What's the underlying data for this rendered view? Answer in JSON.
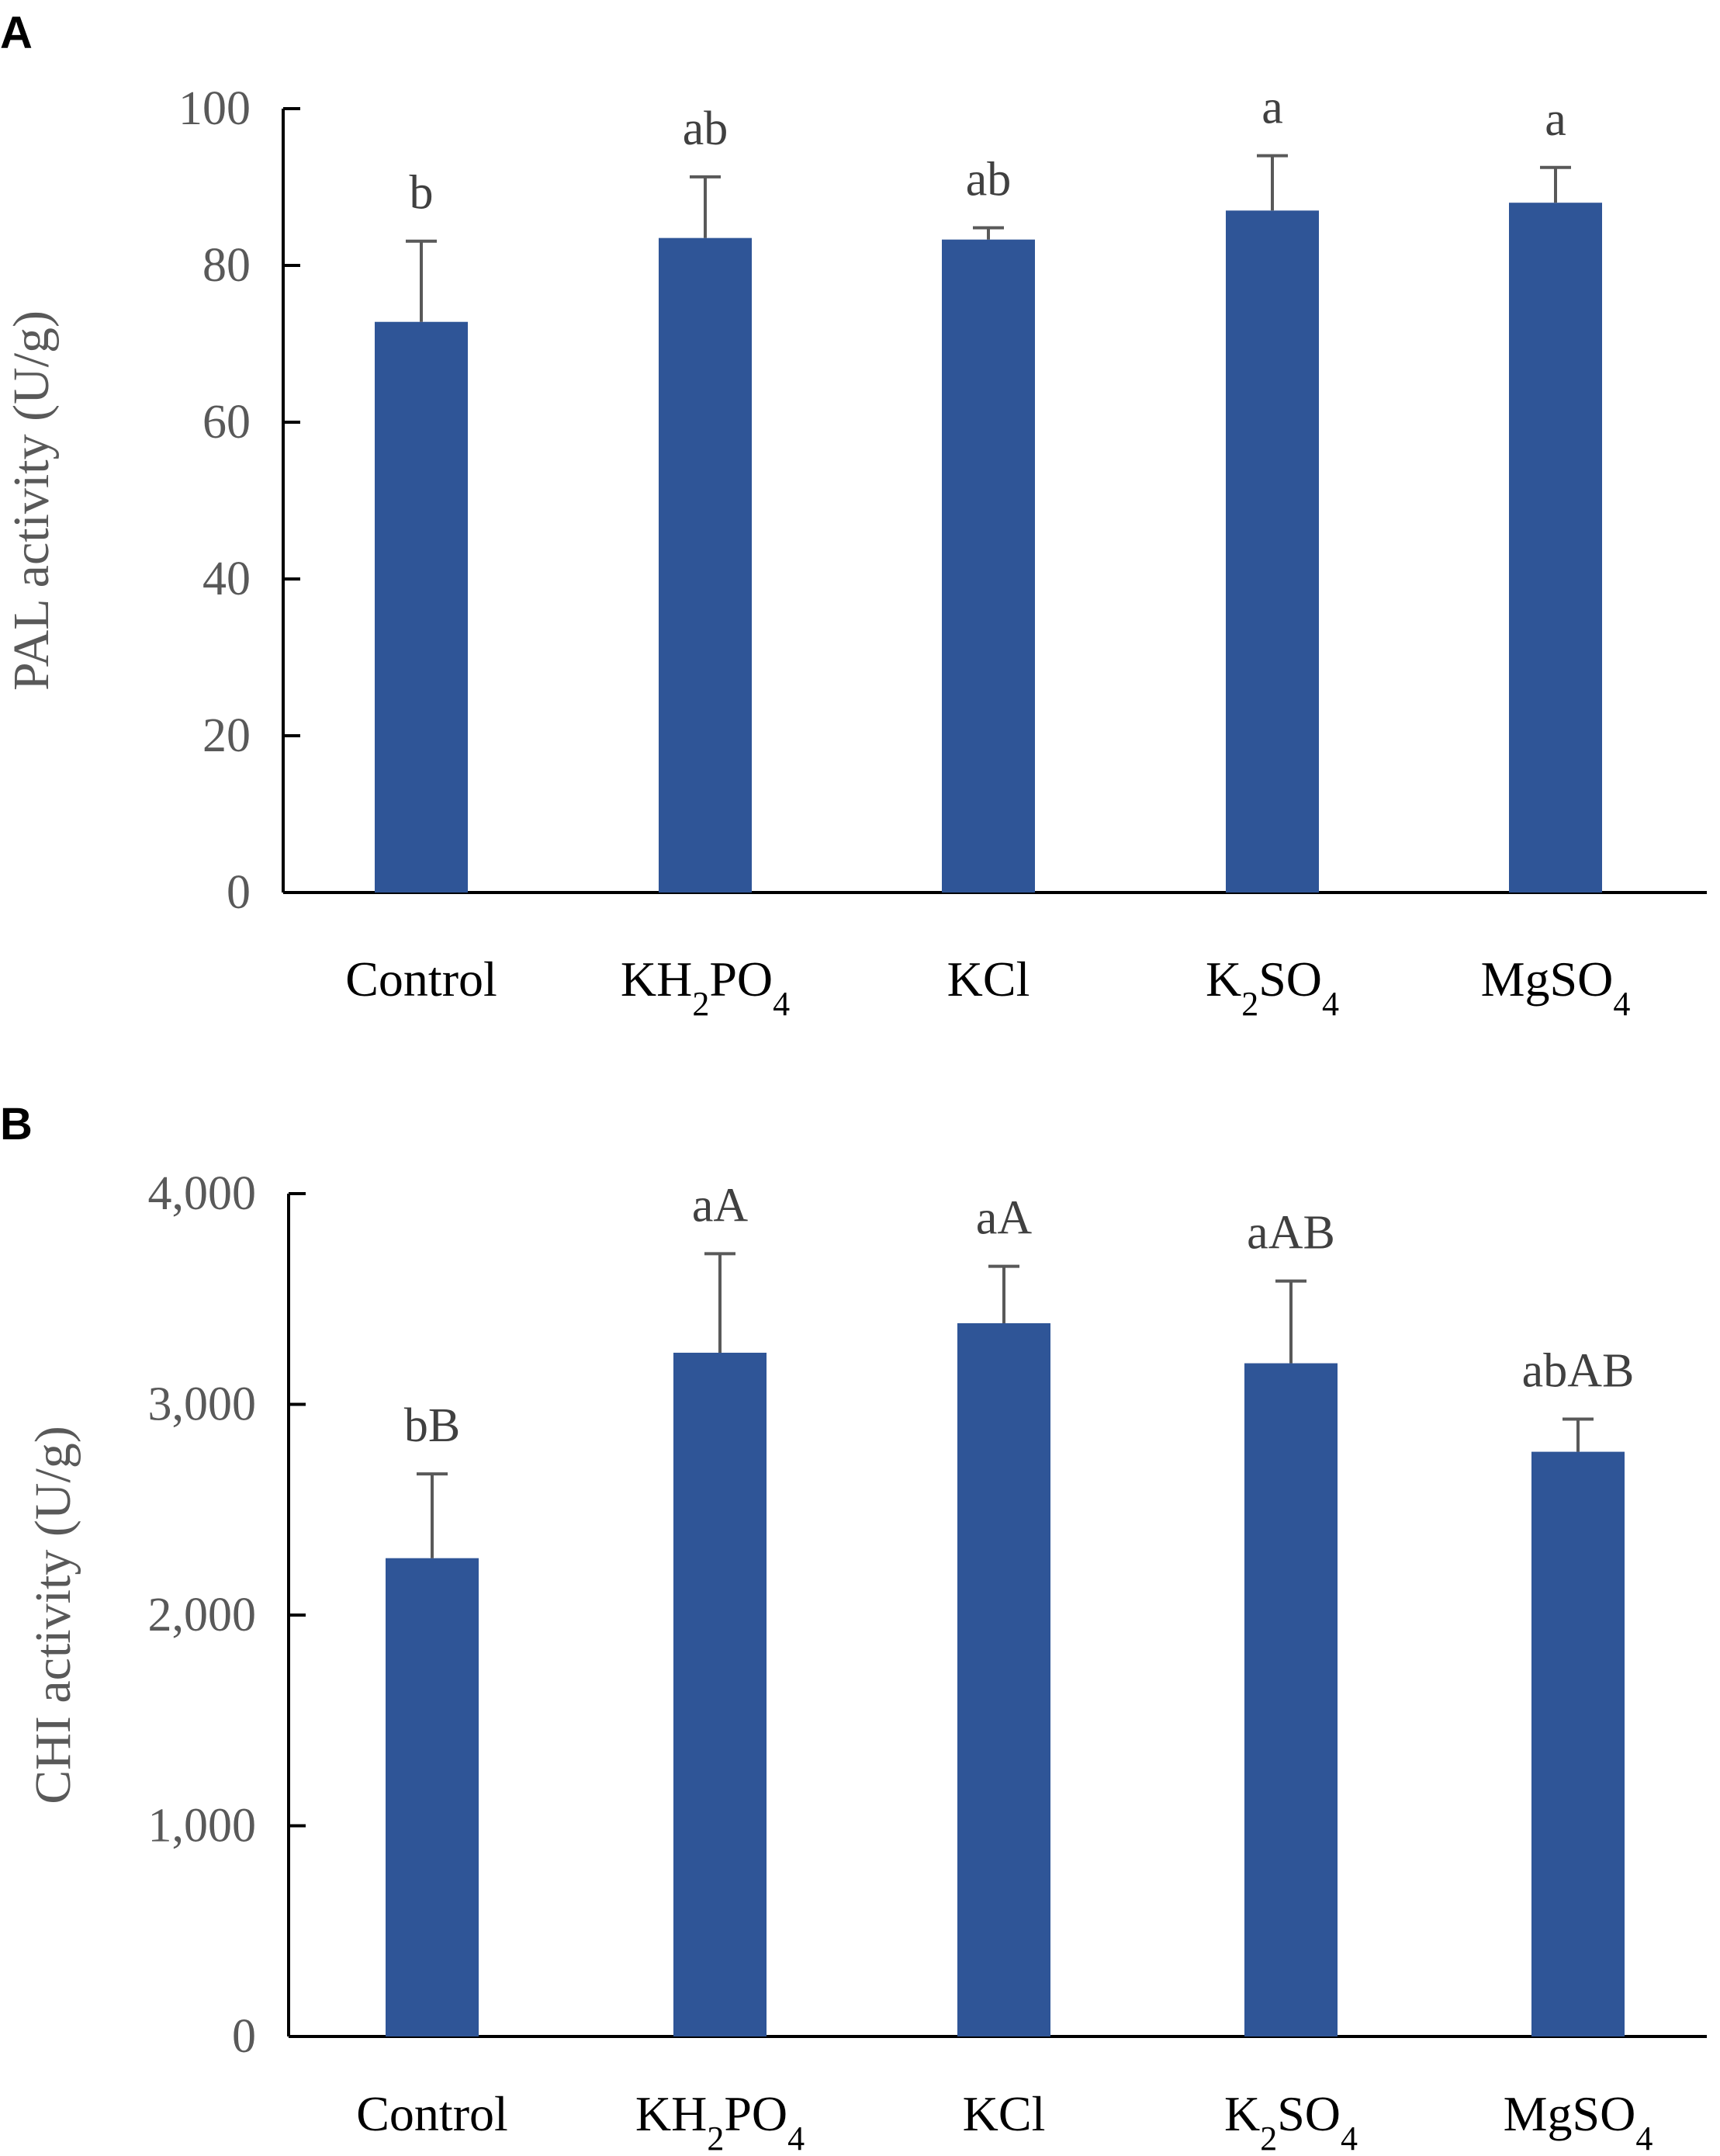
{
  "chart_data": [
    {
      "panel": "A",
      "type": "bar",
      "title": "",
      "xlabel": "",
      "ylabel": "PAL activity (U/g)",
      "ylim": [
        0,
        100
      ],
      "yticks": [
        "0",
        "20",
        "40",
        "60",
        "80",
        "100"
      ],
      "categories": [
        {
          "base": "Control",
          "runs": [
            {
              "t": "Control",
              "sub": false
            }
          ]
        },
        {
          "base": "KH2PO4",
          "runs": [
            {
              "t": "KH",
              "sub": false
            },
            {
              "t": "2",
              "sub": true
            },
            {
              "t": "PO",
              "sub": false
            },
            {
              "t": "4",
              "sub": true
            }
          ]
        },
        {
          "base": "KCl",
          "runs": [
            {
              "t": "KCl",
              "sub": false
            }
          ]
        },
        {
          "base": "K2SO4",
          "runs": [
            {
              "t": "K",
              "sub": false
            },
            {
              "t": "2",
              "sub": true
            },
            {
              "t": "SO",
              "sub": false
            },
            {
              "t": "4",
              "sub": true
            }
          ]
        },
        {
          "base": "MgSO4",
          "runs": [
            {
              "t": "MgSO",
              "sub": false
            },
            {
              "t": "4",
              "sub": true
            }
          ]
        }
      ],
      "values": [
        72.8,
        83.5,
        83.3,
        87.0,
        88.0
      ],
      "errors": [
        10.3,
        7.8,
        1.5,
        7.0,
        4.5
      ],
      "significance": [
        "b",
        "ab",
        "ab",
        "a",
        "a"
      ],
      "bar_color": "#2f5597",
      "grid": false
    },
    {
      "panel": "B",
      "type": "bar",
      "title": "",
      "xlabel": "",
      "ylabel": "CHI activity (U/g)",
      "ylim": [
        0,
        4000
      ],
      "yticks": [
        "0",
        "1,000",
        "2,000",
        "3,000",
        "4,000"
      ],
      "categories": [
        {
          "base": "Control",
          "runs": [
            {
              "t": "Control",
              "sub": false
            }
          ]
        },
        {
          "base": "KH2PO4",
          "runs": [
            {
              "t": "KH",
              "sub": false
            },
            {
              "t": "2",
              "sub": true
            },
            {
              "t": "PO",
              "sub": false
            },
            {
              "t": "4",
              "sub": true
            }
          ]
        },
        {
          "base": "KCl",
          "runs": [
            {
              "t": "KCl",
              "sub": false
            }
          ]
        },
        {
          "base": "K2SO4",
          "runs": [
            {
              "t": "K",
              "sub": false
            },
            {
              "t": "2",
              "sub": true
            },
            {
              "t": "SO",
              "sub": false
            },
            {
              "t": "4",
              "sub": true
            }
          ]
        },
        {
          "base": "MgSO4",
          "runs": [
            {
              "t": "MgSO",
              "sub": false
            },
            {
              "t": "4",
              "sub": true
            }
          ]
        }
      ],
      "values": [
        2270,
        3245,
        3385,
        3195,
        2775
      ],
      "errors": [
        400,
        470,
        270,
        390,
        155
      ],
      "significance": [
        "bB",
        "aA",
        "aA",
        "aAB",
        "abAB"
      ],
      "bar_color": "#2f5597",
      "grid": false
    }
  ]
}
